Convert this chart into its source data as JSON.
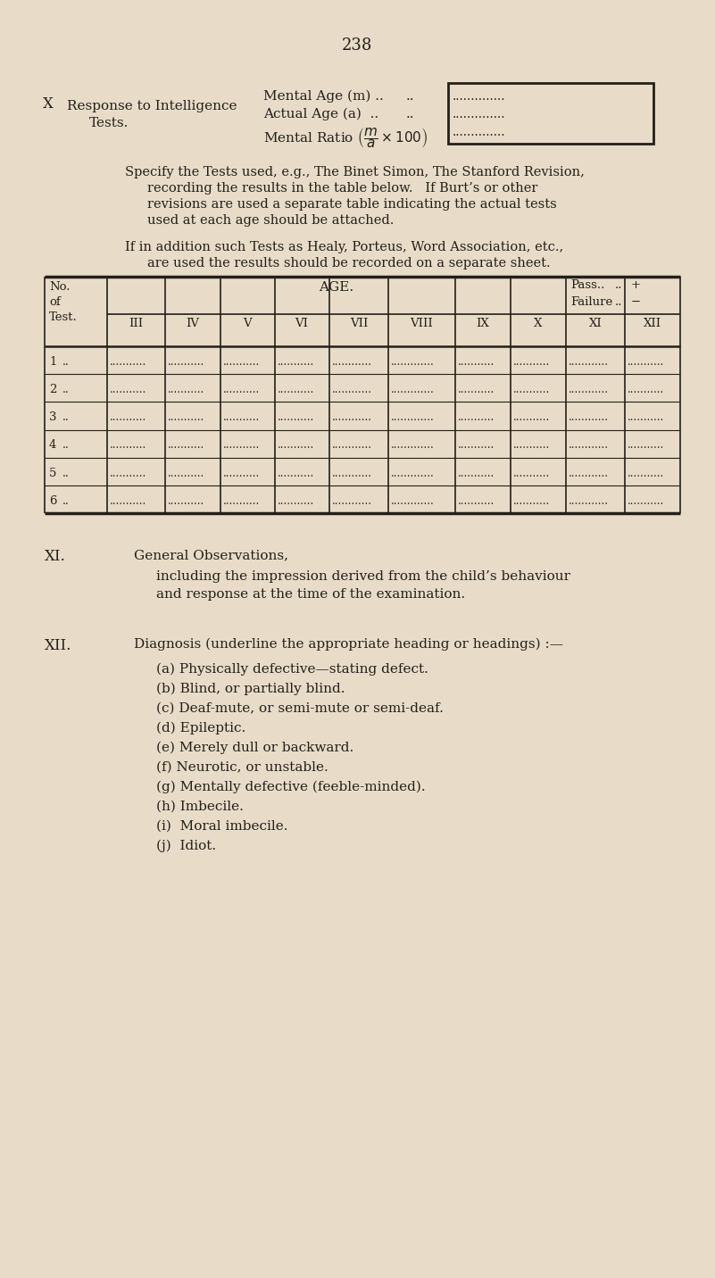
{
  "bg_color": "#e8dcc8",
  "text_color": "#231f1a",
  "page_number": "238",
  "col_headers": [
    "III",
    "IV",
    "V",
    "VI",
    "VII",
    "VIII",
    "IX",
    "X",
    "XI",
    "XII"
  ],
  "row_labels": [
    "1",
    "2",
    "3",
    "4",
    "5",
    "6"
  ],
  "diagnosis_items": [
    "(a) Physically defective—stating defect.",
    "(b) Blind, or partially blind.",
    "(c) Deaf-mute, or semi-mute or semi-deaf.",
    "(d) Epileptic.",
    "(e) Merely dull or backward.",
    "(f) Neurotic, or unstable.",
    "(g) Mentally defective (feeble-minded).",
    "(h) Imbecile.",
    "(i)  Moral imbecile.",
    "(j)  Idiot."
  ]
}
